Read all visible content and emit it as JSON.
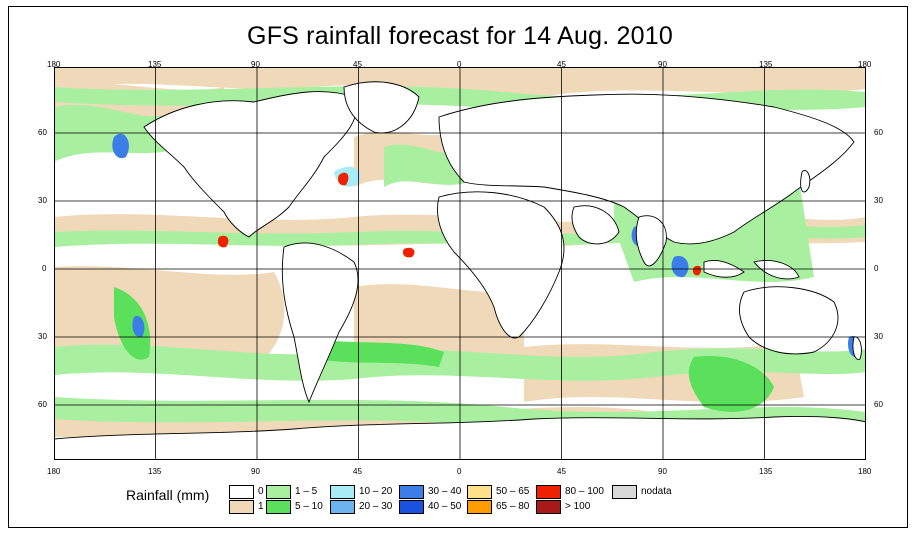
{
  "title": "GFS rainfall forecast for 14 Aug. 2010",
  "axes": {
    "lon_ticks_top": [
      "180",
      "135",
      "90",
      "45",
      "0",
      "45",
      "90",
      "135",
      "180"
    ],
    "lon_ticks_bottom": [
      "180",
      "135",
      "90",
      "45",
      "0",
      "45",
      "90",
      "135",
      "180"
    ],
    "lat_ticks_left": [
      "60",
      "30",
      "0",
      "30",
      "60"
    ],
    "lat_ticks_right": [
      "60",
      "30",
      "0",
      "30",
      "60"
    ]
  },
  "legend": {
    "title": "Rainfall (mm)",
    "items": [
      {
        "label": "0",
        "color": "#ffffff"
      },
      {
        "label": "1",
        "color": "#f0d9b8"
      },
      {
        "label": "1 – 5",
        "color": "#a8f0a0"
      },
      {
        "label": "5 – 10",
        "color": "#5ae05a"
      },
      {
        "label": "10 – 20",
        "color": "#a8ecf8"
      },
      {
        "label": "20 – 30",
        "color": "#6cb4f0"
      },
      {
        "label": "30 – 40",
        "color": "#3b7ee8"
      },
      {
        "label": "40 – 50",
        "color": "#1a52e0"
      },
      {
        "label": "50 – 65",
        "color": "#ffe08a"
      },
      {
        "label": "65 – 80",
        "color": "#ff9c00"
      },
      {
        "label": "80 – 100",
        "color": "#ee2200"
      },
      {
        "label": "> 100",
        "color": "#a81a1a"
      },
      {
        "label": "nodata",
        "color": "#d8d8d8"
      }
    ]
  }
}
